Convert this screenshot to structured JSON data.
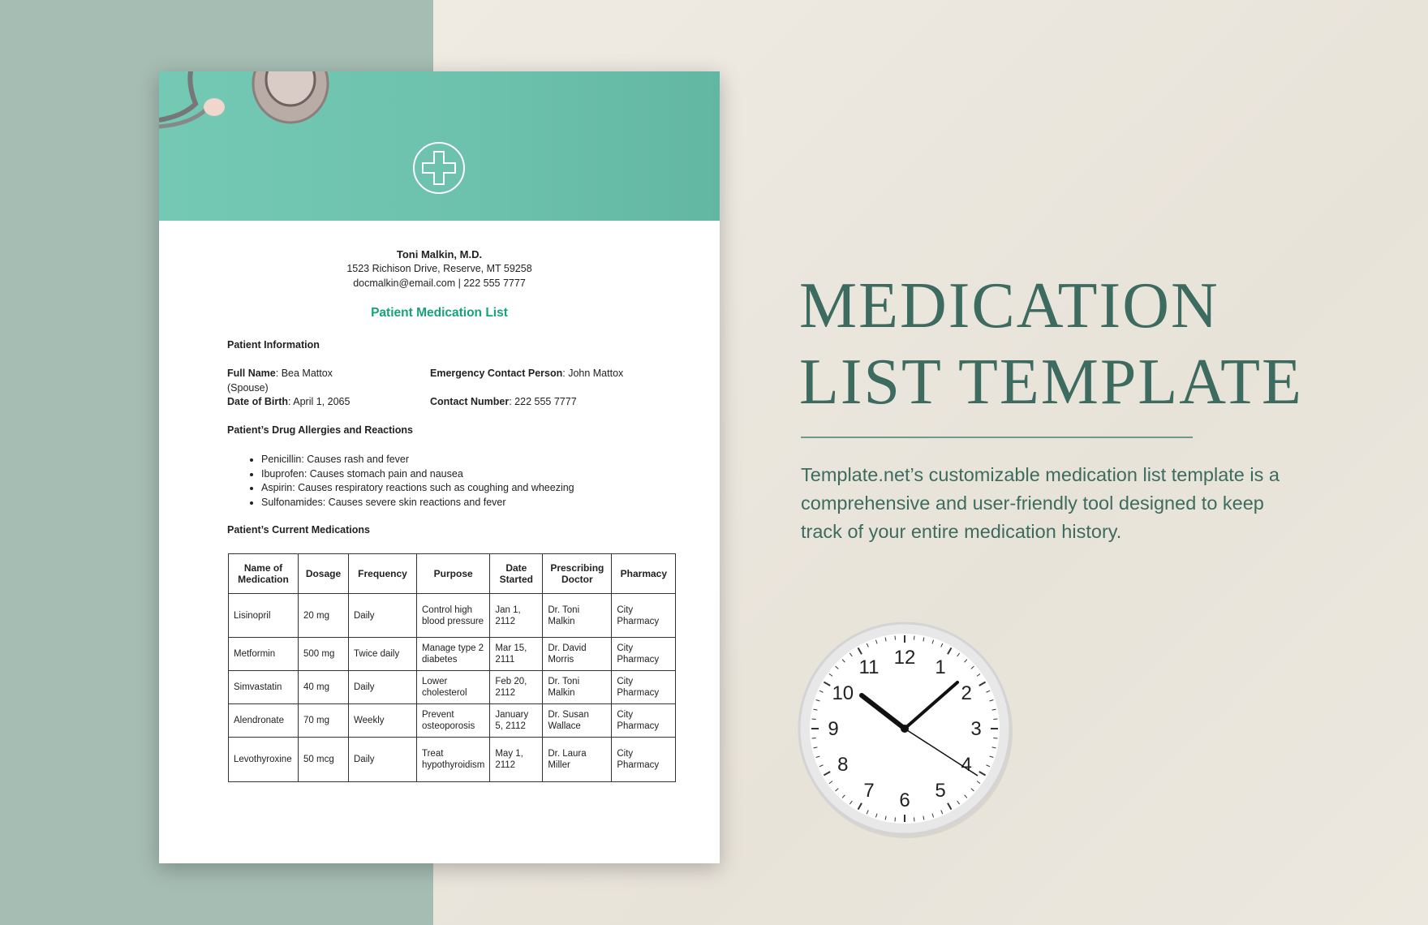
{
  "doctor": {
    "name": "Toni Malkin, M.D.",
    "address": "1523 Richison Drive, Reserve, MT 59258",
    "contact": "docmalkin@email.com | 222 555 7777"
  },
  "doc_title": "Patient Medication List",
  "patient_info": {
    "heading": "Patient Information",
    "full_name_label": "Full Name",
    "full_name": ": Bea Mattox",
    "spouse_note": "(Spouse)",
    "dob_label": "Date of Birth",
    "dob": ": April 1, 2065",
    "emergency_label": "Emergency Contact Person",
    "emergency": ": John Mattox",
    "contact_label": "Contact Number",
    "contact": ": 222 555 7777"
  },
  "allergies": {
    "heading": "Patient’s Drug Allergies and Reactions",
    "items": [
      "Penicillin: Causes rash and fever",
      "Ibuprofen: Causes stomach pain and nausea",
      "Aspirin: Causes respiratory reactions such as coughing and wheezing",
      "Sulfonamides: Causes severe skin reactions and fever"
    ]
  },
  "medications": {
    "heading": "Patient’s Current Medications",
    "columns": [
      "Name of Medication",
      "Dosage",
      "Frequency",
      "Purpose",
      "Date Started",
      "Prescribing Doctor",
      "Pharmacy"
    ],
    "rows": [
      [
        "Lisinopril",
        "20 mg",
        "Daily",
        "Control high blood pressure",
        "Jan 1, 2112",
        "Dr. Toni Malkin",
        "City Pharmacy"
      ],
      [
        "Metformin",
        "500 mg",
        "Twice daily",
        "Manage type 2 diabetes",
        "Mar 15, 2111",
        "Dr. David Morris",
        "City Pharmacy"
      ],
      [
        "Simvastatin",
        "40 mg",
        "Daily",
        "Lower cholesterol",
        "Feb 20, 2112",
        "Dr. Toni Malkin",
        "City Pharmacy"
      ],
      [
        "Alendronate",
        "70 mg",
        "Weekly",
        "Prevent osteoporosis",
        "January 5, 2112",
        "Dr. Susan Wallace",
        "City Pharmacy"
      ],
      [
        "Levothyroxine",
        "50 mcg",
        "Daily",
        "Treat hypothyroidism",
        "May 1, 2112",
        "Dr. Laura Miller",
        "City Pharmacy"
      ]
    ]
  },
  "promo": {
    "title_line1": "MEDICATION",
    "title_line2": "LIST TEMPLATE",
    "description": "Template.net’s customizable medication list template is a comprehensive and user-friendly tool designed to keep track of your entire medication history."
  },
  "colors": {
    "accent_green": "#16a37a",
    "title_green": "#3d6b5f",
    "header_teal": "#6cc1ad",
    "left_panel": "#a5bdb3"
  },
  "icons": [
    "medical-cross-icon",
    "stethoscope-image",
    "wall-clock-image"
  ]
}
